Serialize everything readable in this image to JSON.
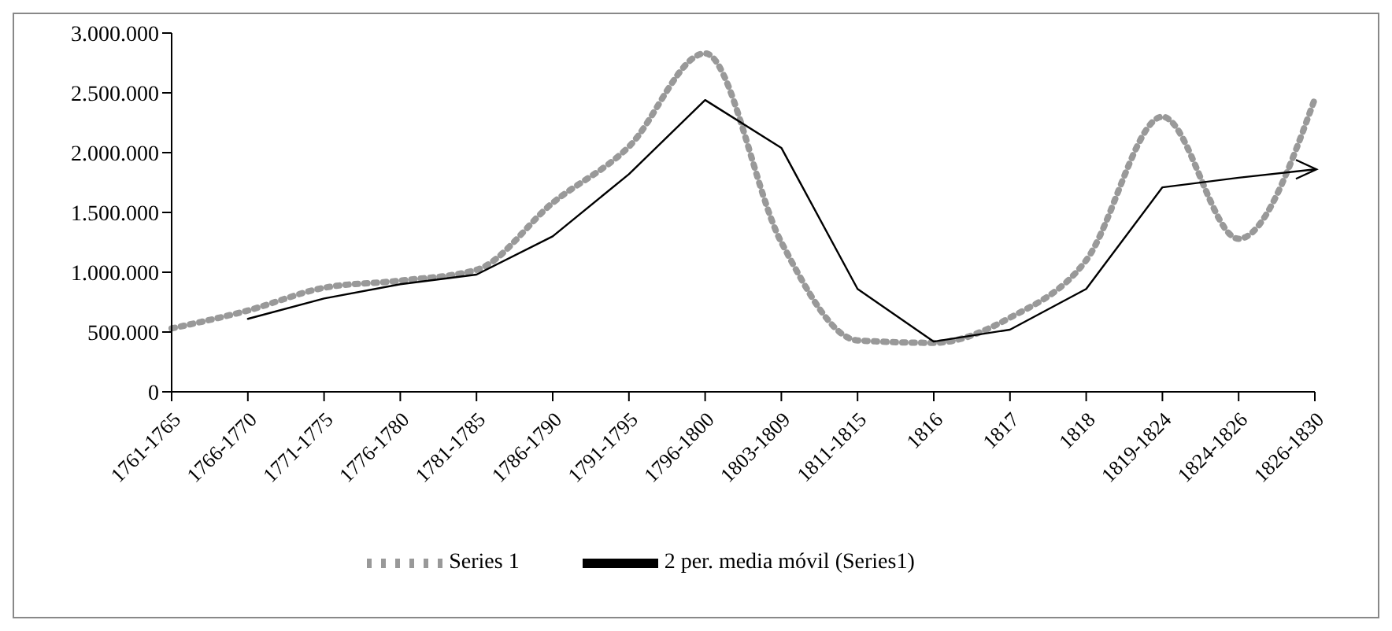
{
  "chart_data": {
    "type": "line",
    "categories": [
      "1761-1765",
      "1766-1770",
      "1771-1775",
      "1776-1780",
      "1781-1785",
      "1786-1790",
      "1791-1795",
      "1796-1800",
      "1803-1809",
      "1811-1815",
      "1816",
      "1817",
      "1818",
      "1819-1824",
      "1824-1826",
      "1826-1830"
    ],
    "series": [
      {
        "name": "Series 1",
        "color": "#999999",
        "line_style": "dotted",
        "values": [
          530000,
          680000,
          870000,
          930000,
          1020000,
          1580000,
          2050000,
          2830000,
          1250000,
          430000,
          410000,
          620000,
          1100000,
          2300000,
          1280000,
          2450000
        ]
      },
      {
        "name": "2 per. media móvil (Series1)",
        "color": "#000000",
        "line_style": "solid",
        "values": [
          null,
          610000,
          780000,
          900000,
          980000,
          1300000,
          1820000,
          2440000,
          2040000,
          860000,
          420000,
          520000,
          860000,
          1710000,
          1790000,
          1860000
        ]
      }
    ],
    "ylim": [
      0,
      3000000
    ],
    "yticks": [
      {
        "value": 0,
        "label": "0"
      },
      {
        "value": 500000,
        "label": "500.000"
      },
      {
        "value": 1000000,
        "label": "1.000.000"
      },
      {
        "value": 1500000,
        "label": "1.500.000"
      },
      {
        "value": 2000000,
        "label": "2.000.000"
      },
      {
        "value": 2500000,
        "label": "2.500.000"
      },
      {
        "value": 3000000,
        "label": "3.000.000"
      }
    ],
    "grid": false,
    "legend": "bottom",
    "marker": "none"
  }
}
